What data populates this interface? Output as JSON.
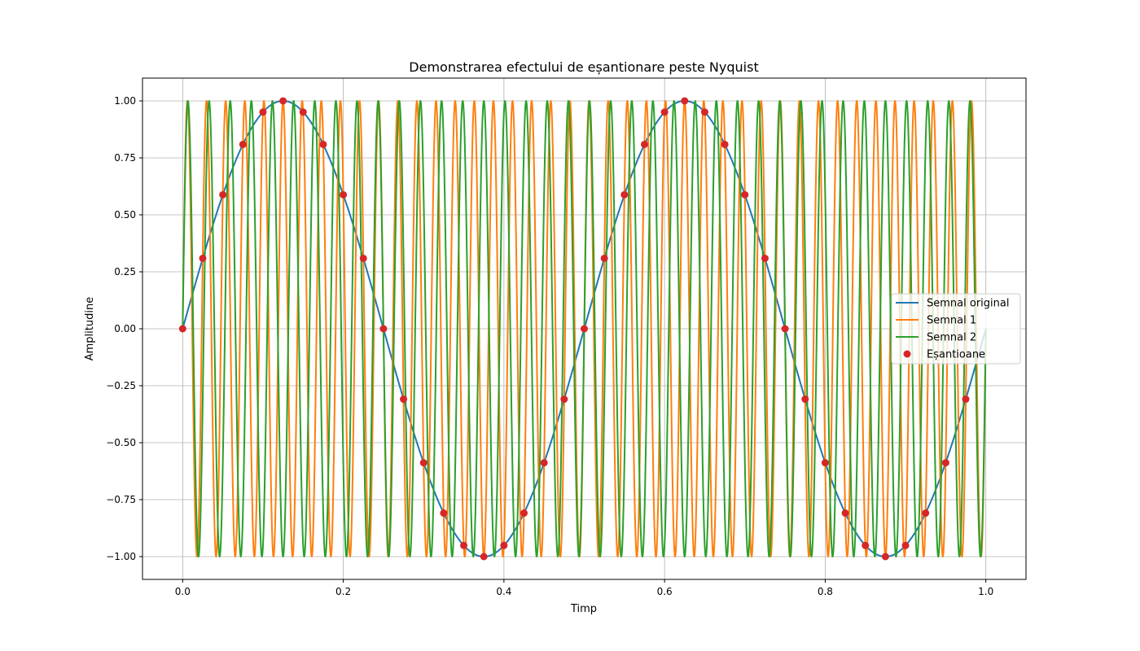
{
  "chart_data": {
    "type": "line",
    "title": "Demonstrarea efectului de eșantionare peste Nyquist",
    "xlabel": "Timp",
    "ylabel": "Amplitudine",
    "xlim": [
      -0.05,
      1.05
    ],
    "ylim": [
      -1.1,
      1.1
    ],
    "xticks": [
      0.0,
      0.2,
      0.4,
      0.6,
      0.8,
      1.0
    ],
    "xtick_labels": [
      "0.0",
      "0.2",
      "0.4",
      "0.6",
      "0.8",
      "1.0"
    ],
    "yticks": [
      -1.0,
      -0.75,
      -0.5,
      -0.25,
      0.0,
      0.25,
      0.5,
      0.75,
      1.0
    ],
    "ytick_labels": [
      "−1.00",
      "−0.75",
      "−0.50",
      "−0.25",
      "0.00",
      "0.25",
      "0.50",
      "0.75",
      "1.00"
    ],
    "grid": true,
    "legend_position": "center-right",
    "series": [
      {
        "name": "Semnal original",
        "kind": "line",
        "color": "#1f77b4",
        "function": "sin(2*pi*2*t)",
        "frequency": 2,
        "t_range": [
          0,
          1
        ]
      },
      {
        "name": "Semnal 1",
        "kind": "line",
        "color": "#ff7f0e",
        "function": "sin(2*pi*42*t)",
        "frequency": 42,
        "t_range": [
          0,
          1
        ]
      },
      {
        "name": "Semnal 2",
        "kind": "line",
        "color": "#2ca02c",
        "function": "sin(2*pi*38*t)",
        "frequency": 38,
        "t_range": [
          0,
          1
        ]
      },
      {
        "name": "Eșantioane",
        "kind": "scatter",
        "color": "#d62728",
        "x": [
          0.0,
          0.025,
          0.05,
          0.075,
          0.1,
          0.125,
          0.15,
          0.175,
          0.2,
          0.225,
          0.25,
          0.275,
          0.3,
          0.325,
          0.35,
          0.375,
          0.4,
          0.425,
          0.45,
          0.475,
          0.5,
          0.525,
          0.55,
          0.575,
          0.6,
          0.625,
          0.65,
          0.675,
          0.7,
          0.725,
          0.75,
          0.775,
          0.8,
          0.825,
          0.85,
          0.875,
          0.9,
          0.925,
          0.95,
          0.975
        ],
        "y": [
          0.0,
          0.309,
          0.588,
          0.809,
          0.951,
          1.0,
          0.951,
          0.809,
          0.588,
          0.309,
          0.0,
          -0.309,
          -0.588,
          -0.809,
          -0.951,
          -1.0,
          -0.951,
          -0.809,
          -0.588,
          -0.309,
          0.0,
          0.309,
          0.588,
          0.809,
          0.951,
          1.0,
          0.951,
          0.809,
          0.588,
          0.309,
          0.0,
          -0.309,
          -0.588,
          -0.809,
          -0.951,
          -1.0,
          -0.951,
          -0.809,
          -0.588,
          -0.309
        ]
      }
    ]
  }
}
